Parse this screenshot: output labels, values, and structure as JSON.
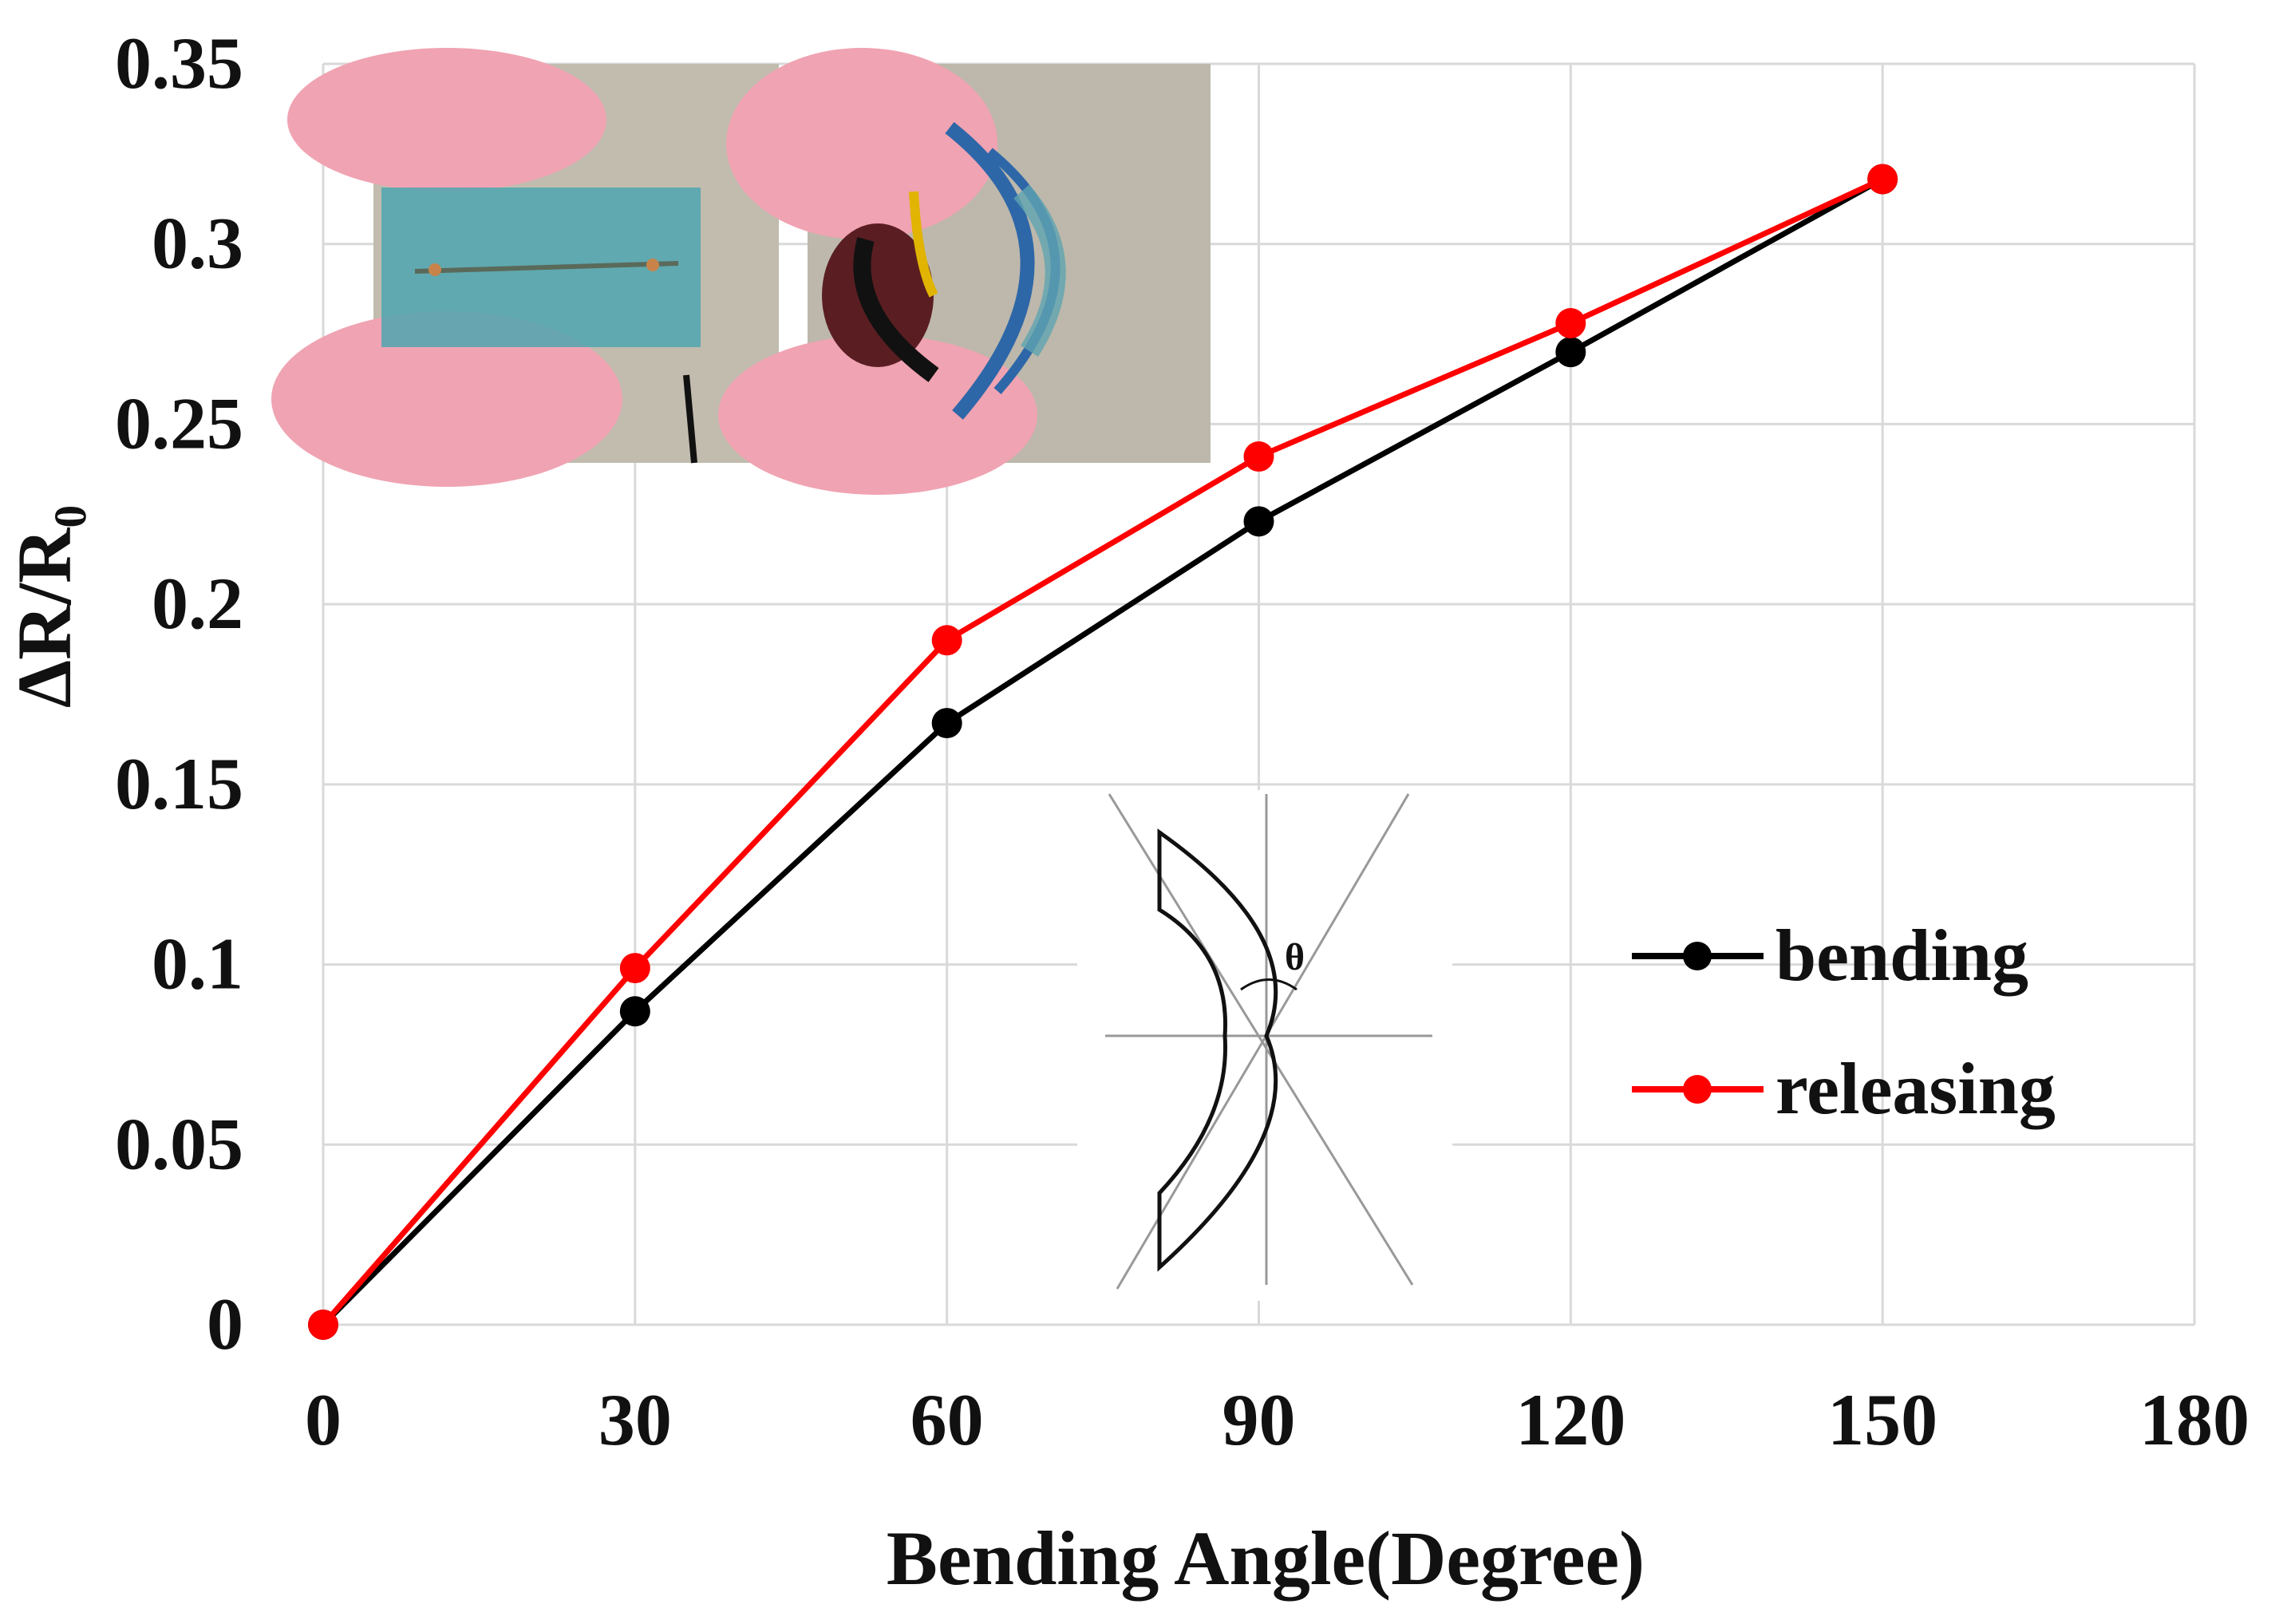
{
  "chart_data": {
    "type": "line",
    "xlabel": "Bending Angle(Degree)",
    "ylabel": "ΔR/R₀",
    "xlim": [
      0,
      180
    ],
    "ylim": [
      0,
      0.35
    ],
    "x_ticks": [
      "0",
      "30",
      "60",
      "90",
      "120",
      "150",
      "180"
    ],
    "y_ticks": [
      "0",
      "0.05",
      "0.1",
      "0.15",
      "0.2",
      "0.25",
      "0.3",
      "0.35"
    ],
    "grid": true,
    "legend_position": "center-right",
    "x": [
      0,
      30,
      60,
      90,
      120,
      150
    ],
    "series": [
      {
        "name": "bending",
        "color": "#000000",
        "values": [
          0,
          0.087,
          0.167,
          0.223,
          0.27,
          0.318
        ]
      },
      {
        "name": "releasing",
        "color": "#ff0000",
        "values": [
          0,
          0.099,
          0.19,
          0.241,
          0.278,
          0.318
        ]
      }
    ],
    "insets": {
      "photos": [
        "flat-sensor-photo",
        "bent-sensor-photo"
      ],
      "schematic_symbol": "θ"
    }
  }
}
